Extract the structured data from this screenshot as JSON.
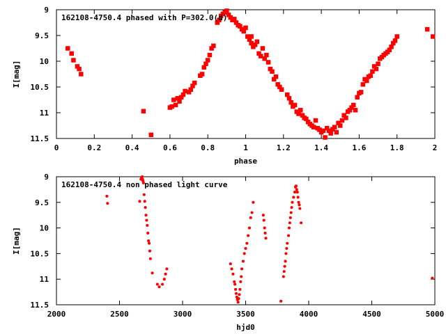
{
  "colors": {
    "points": "#ff0000",
    "axes": "#000000",
    "background": "#ffffff"
  },
  "chart_data": [
    {
      "type": "scatter",
      "title": "162108-4750.4 phased with P=302.0(d)",
      "xlabel": "phase",
      "ylabel": "I[mag]",
      "xlim": [
        0,
        2
      ],
      "ylim": [
        9,
        11.5
      ],
      "y_inverted": true,
      "grid": false,
      "marker": "filled-square",
      "xticks": [
        0,
        0.2,
        0.4,
        0.6,
        0.8,
        1,
        1.2,
        1.4,
        1.6,
        1.8,
        2
      ],
      "xtick_labels": [
        "0",
        "0.2",
        "0.4",
        "0.6",
        "0.8",
        "1",
        "1.2",
        "1.4",
        "1.6",
        "1.8",
        "2"
      ],
      "yticks": [
        9,
        9.5,
        10,
        10.5,
        11,
        11.5
      ],
      "ytick_labels": [
        "9",
        "9.5",
        "10",
        "10.5",
        "11",
        "11.5"
      ],
      "series": [
        {
          "points": [
            [
              0.06,
              9.75
            ],
            [
              0.08,
              9.85
            ],
            [
              0.09,
              9.98
            ],
            [
              0.11,
              10.1
            ],
            [
              0.12,
              10.15
            ],
            [
              0.13,
              10.25
            ],
            [
              0.46,
              10.97
            ],
            [
              0.5,
              11.43
            ],
            [
              0.6,
              10.9
            ],
            [
              0.61,
              10.88
            ],
            [
              0.62,
              10.75
            ],
            [
              0.63,
              10.85
            ],
            [
              0.64,
              10.72
            ],
            [
              0.65,
              10.78
            ],
            [
              0.66,
              10.7
            ],
            [
              0.67,
              10.65
            ],
            [
              0.68,
              10.58
            ],
            [
              0.7,
              10.6
            ],
            [
              0.71,
              10.55
            ],
            [
              0.72,
              10.48
            ],
            [
              0.73,
              10.42
            ],
            [
              0.76,
              10.28
            ],
            [
              0.77,
              10.25
            ],
            [
              0.78,
              10.12
            ],
            [
              0.79,
              10.05
            ],
            [
              0.8,
              9.98
            ],
            [
              0.81,
              9.88
            ],
            [
              0.82,
              9.75
            ],
            [
              0.83,
              9.7
            ],
            [
              0.85,
              9.25
            ],
            [
              0.86,
              9.2
            ],
            [
              0.87,
              9.12
            ],
            [
              0.88,
              9.08
            ],
            [
              0.89,
              9.05
            ],
            [
              0.9,
              9.02
            ],
            [
              0.91,
              9.1
            ],
            [
              0.92,
              9.15
            ],
            [
              0.93,
              9.2
            ],
            [
              0.94,
              9.18
            ],
            [
              0.95,
              9.25
            ],
            [
              0.96,
              9.3
            ],
            [
              0.97,
              9.32
            ],
            [
              0.98,
              9.38
            ],
            [
              0.99,
              9.42
            ],
            [
              1.0,
              9.35
            ],
            [
              1.01,
              9.52
            ],
            [
              1.02,
              9.58
            ],
            [
              1.03,
              9.52
            ],
            [
              1.03,
              9.65
            ],
            [
              1.04,
              9.72
            ],
            [
              1.05,
              9.68
            ],
            [
              1.06,
              9.62
            ],
            [
              1.07,
              9.85
            ],
            [
              1.08,
              9.9
            ],
            [
              1.09,
              9.75
            ],
            [
              1.1,
              9.95
            ],
            [
              1.11,
              9.88
            ],
            [
              1.12,
              10.02
            ],
            [
              1.13,
              10.15
            ],
            [
              1.14,
              10.2
            ],
            [
              1.15,
              10.35
            ],
            [
              1.16,
              10.3
            ],
            [
              1.17,
              10.45
            ],
            [
              1.18,
              10.5
            ],
            [
              1.19,
              10.55
            ],
            [
              1.22,
              10.65
            ],
            [
              1.23,
              10.72
            ],
            [
              1.24,
              10.8
            ],
            [
              1.25,
              10.88
            ],
            [
              1.26,
              10.85
            ],
            [
              1.27,
              10.98
            ],
            [
              1.28,
              11.02
            ],
            [
              1.29,
              10.95
            ],
            [
              1.3,
              11.05
            ],
            [
              1.31,
              11.1
            ],
            [
              1.32,
              11.12
            ],
            [
              1.33,
              11.18
            ],
            [
              1.34,
              11.22
            ],
            [
              1.35,
              11.25
            ],
            [
              1.36,
              11.28
            ],
            [
              1.37,
              11.15
            ],
            [
              1.38,
              11.3
            ],
            [
              1.39,
              11.33
            ],
            [
              1.4,
              11.38
            ],
            [
              1.41,
              11.35
            ],
            [
              1.42,
              11.48
            ],
            [
              1.43,
              11.3
            ],
            [
              1.44,
              11.35
            ],
            [
              1.45,
              11.4
            ],
            [
              1.46,
              11.32
            ],
            [
              1.47,
              11.28
            ],
            [
              1.48,
              11.38
            ],
            [
              1.49,
              11.2
            ],
            [
              1.5,
              11.25
            ],
            [
              1.51,
              11.15
            ],
            [
              1.52,
              11.05
            ],
            [
              1.53,
              11.1
            ],
            [
              1.54,
              10.98
            ],
            [
              1.55,
              10.95
            ],
            [
              1.56,
              10.9
            ],
            [
              1.57,
              10.85
            ],
            [
              1.58,
              10.95
            ],
            [
              1.59,
              10.7
            ],
            [
              1.6,
              10.62
            ],
            [
              1.61,
              10.6
            ],
            [
              1.62,
              10.45
            ],
            [
              1.63,
              10.35
            ],
            [
              1.64,
              10.38
            ],
            [
              1.65,
              10.3
            ],
            [
              1.66,
              10.28
            ],
            [
              1.67,
              10.2
            ],
            [
              1.68,
              10.1
            ],
            [
              1.69,
              10.15
            ],
            [
              1.7,
              10.05
            ],
            [
              1.71,
              9.95
            ],
            [
              1.72,
              9.92
            ],
            [
              1.73,
              9.88
            ],
            [
              1.74,
              9.85
            ],
            [
              1.75,
              9.82
            ],
            [
              1.76,
              9.78
            ],
            [
              1.77,
              9.72
            ],
            [
              1.78,
              9.65
            ],
            [
              1.79,
              9.6
            ],
            [
              1.8,
              9.52
            ],
            [
              1.96,
              9.38
            ],
            [
              1.99,
              9.52
            ]
          ]
        }
      ]
    },
    {
      "type": "scatter",
      "title": "162108-4750.4 non phased light curve",
      "xlabel": "hjd0",
      "ylabel": "I[mag]",
      "xlim": [
        2000,
        5000
      ],
      "ylim": [
        9,
        11.5
      ],
      "y_inverted": true,
      "grid": false,
      "marker": "small-dot",
      "xticks": [
        2000,
        2500,
        3000,
        3500,
        4000,
        4500,
        5000
      ],
      "xtick_labels": [
        "2000",
        "2500",
        "3000",
        "3500",
        "4000",
        "4500",
        "5000"
      ],
      "yticks": [
        9,
        9.5,
        10,
        10.5,
        11,
        11.5
      ],
      "ytick_labels": [
        "9",
        "9.5",
        "10",
        "10.5",
        "11",
        "11.5"
      ],
      "series": [
        {
          "points": [
            [
              2400,
              9.38
            ],
            [
              2405,
              9.52
            ],
            [
              2660,
              9.48
            ],
            [
              2670,
              9.05
            ],
            [
              2675,
              9.02
            ],
            [
              2680,
              9.0
            ],
            [
              2683,
              9.05
            ],
            [
              2686,
              9.08
            ],
            [
              2690,
              9.12
            ],
            [
              2695,
              9.35
            ],
            [
              2700,
              9.48
            ],
            [
              2705,
              9.6
            ],
            [
              2710,
              9.75
            ],
            [
              2715,
              9.85
            ],
            [
              2720,
              9.95
            ],
            [
              2725,
              10.1
            ],
            [
              2730,
              10.25
            ],
            [
              2735,
              10.3
            ],
            [
              2740,
              10.45
            ],
            [
              2745,
              10.6
            ],
            [
              2760,
              10.88
            ],
            [
              2800,
              11.1
            ],
            [
              2815,
              11.15
            ],
            [
              2840,
              11.1
            ],
            [
              2855,
              11.0
            ],
            [
              2865,
              10.9
            ],
            [
              2875,
              10.8
            ],
            [
              3380,
              10.7
            ],
            [
              3390,
              10.8
            ],
            [
              3400,
              10.9
            ],
            [
              3410,
              11.05
            ],
            [
              3415,
              11.1
            ],
            [
              3420,
              11.2
            ],
            [
              3425,
              11.28
            ],
            [
              3430,
              11.35
            ],
            [
              3435,
              11.4
            ],
            [
              3440,
              11.45
            ],
            [
              3445,
              11.38
            ],
            [
              3450,
              11.3
            ],
            [
              3455,
              11.2
            ],
            [
              3460,
              11.05
            ],
            [
              3465,
              10.95
            ],
            [
              3470,
              10.8
            ],
            [
              3480,
              10.65
            ],
            [
              3490,
              10.5
            ],
            [
              3500,
              10.4
            ],
            [
              3510,
              10.3
            ],
            [
              3520,
              10.15
            ],
            [
              3530,
              10.0
            ],
            [
              3540,
              9.8
            ],
            [
              3550,
              9.7
            ],
            [
              3560,
              9.5
            ],
            [
              3640,
              9.75
            ],
            [
              3645,
              9.85
            ],
            [
              3650,
              10.0
            ],
            [
              3655,
              10.1
            ],
            [
              3660,
              10.2
            ],
            [
              3780,
              11.43
            ],
            [
              3800,
              10.95
            ],
            [
              3805,
              10.85
            ],
            [
              3810,
              10.75
            ],
            [
              3815,
              10.65
            ],
            [
              3820,
              10.5
            ],
            [
              3825,
              10.4
            ],
            [
              3830,
              10.3
            ],
            [
              3840,
              10.15
            ],
            [
              3845,
              10.0
            ],
            [
              3850,
              9.9
            ],
            [
              3855,
              9.8
            ],
            [
              3860,
              9.7
            ],
            [
              3865,
              9.6
            ],
            [
              3870,
              9.5
            ],
            [
              3880,
              9.4
            ],
            [
              3890,
              9.3
            ],
            [
              3895,
              9.2
            ],
            [
              3900,
              9.18
            ],
            [
              3905,
              9.25
            ],
            [
              3910,
              9.3
            ],
            [
              3915,
              9.4
            ],
            [
              3920,
              9.5
            ],
            [
              3925,
              9.55
            ],
            [
              3930,
              9.62
            ],
            [
              3940,
              9.9
            ],
            [
              4980,
              10.98
            ]
          ]
        }
      ]
    }
  ]
}
